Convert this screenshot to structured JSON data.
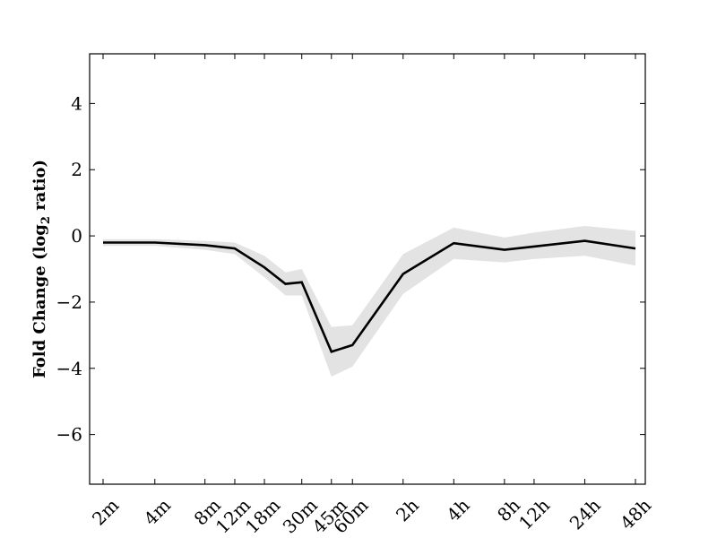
{
  "chart_data": {
    "type": "line",
    "title": "",
    "xlabel": "",
    "ylabel": "Fold Change (log",
    "ylabel_subscript": "2",
    "ylabel_suffix": " ratio)",
    "ylim": [
      -7.5,
      5.5
    ],
    "yticks": [
      4,
      2,
      0,
      -2,
      -4,
      -6
    ],
    "ytick_labels": [
      "4",
      "2",
      "0",
      "−2",
      "−4",
      "−6"
    ],
    "categories": [
      "2m",
      "4m",
      "8m",
      "12m",
      "18m",
      "30m",
      "45m",
      "60m",
      "2h",
      "4h",
      "8h",
      "12h",
      "24h",
      "48h"
    ],
    "x_positions": [
      0.033,
      0.067,
      0.133,
      0.2,
      0.3,
      0.5,
      0.75,
      1,
      2,
      4,
      8,
      12,
      24,
      48
    ],
    "x_scale": "log",
    "series": [
      {
        "x": [
          0.033,
          0.067,
          0.133,
          0.2,
          0.3,
          0.4,
          0.5,
          0.75,
          1,
          2,
          4,
          8,
          12,
          24,
          48
        ],
        "values": [
          -0.2,
          -0.2,
          -0.28,
          -0.38,
          -0.95,
          -1.45,
          -1.4,
          -3.5,
          -3.3,
          -1.15,
          -0.22,
          -0.42,
          -0.32,
          -0.15,
          -0.38
        ],
        "upper": [
          -0.1,
          -0.1,
          -0.15,
          -0.2,
          -0.6,
          -1.1,
          -1.0,
          -2.75,
          -2.7,
          -0.55,
          0.25,
          -0.05,
          0.1,
          0.3,
          0.15
        ],
        "lower": [
          -0.3,
          -0.3,
          -0.42,
          -0.55,
          -1.25,
          -1.8,
          -1.8,
          -4.25,
          -3.95,
          -1.75,
          -0.7,
          -0.8,
          -0.7,
          -0.6,
          -0.9
        ],
        "color": "#000000",
        "band_color": "#e3e3e3"
      }
    ],
    "grid": false
  }
}
